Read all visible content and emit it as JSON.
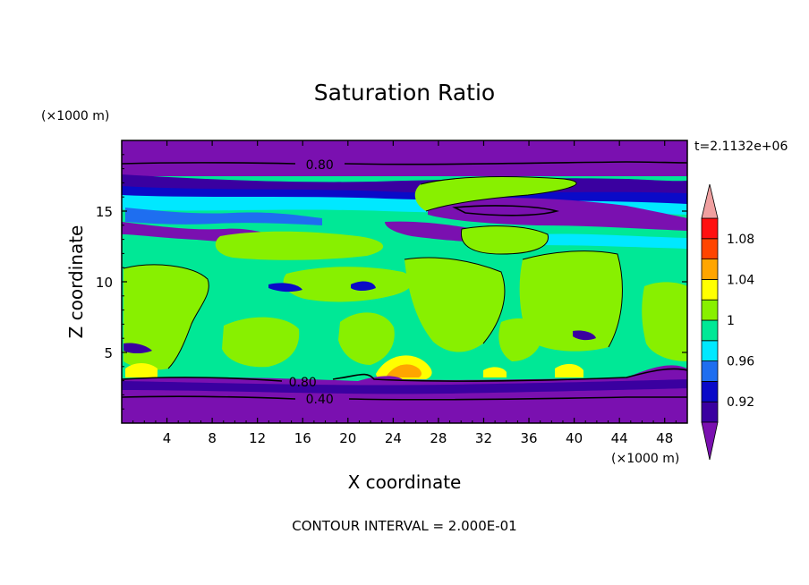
{
  "chart_data": {
    "type": "heatmap",
    "title": "Saturation Ratio",
    "xlabel": "X coordinate",
    "ylabel": "Z coordinate",
    "x_unit": "(×1000 m)",
    "y_unit": "(×1000 m)",
    "time_label": "t=2.1132e+06",
    "footer": "CONTOUR INTERVAL = 2.000E-01",
    "xlim": [
      0,
      50
    ],
    "ylim": [
      0,
      20
    ],
    "x_ticks": [
      4,
      8,
      12,
      16,
      20,
      24,
      28,
      32,
      36,
      40,
      44,
      48
    ],
    "y_ticks": [
      5,
      10,
      15
    ],
    "colorbar": {
      "labels": [
        "1.08",
        "1.04",
        "1",
        "0.96",
        "0.92"
      ],
      "levels": [
        0.92,
        0.94,
        0.96,
        0.98,
        1.0,
        1.02,
        1.04,
        1.06,
        1.08,
        1.1
      ],
      "colors": [
        "#7a10b0",
        "#3a00a0",
        "#0a0ac8",
        "#1e6ef0",
        "#00e8ff",
        "#00e896",
        "#88f000",
        "#ffff00",
        "#ffa500",
        "#ff4500",
        "#ff1010",
        "#f0a0a0"
      ]
    },
    "contour_labels": [
      {
        "text": "0.80",
        "x": 17.5,
        "y": 18.3
      },
      {
        "text": "0.80",
        "x": 16.0,
        "y": 2.9
      },
      {
        "text": "0.40",
        "x": 17.5,
        "y": 1.7
      }
    ]
  }
}
